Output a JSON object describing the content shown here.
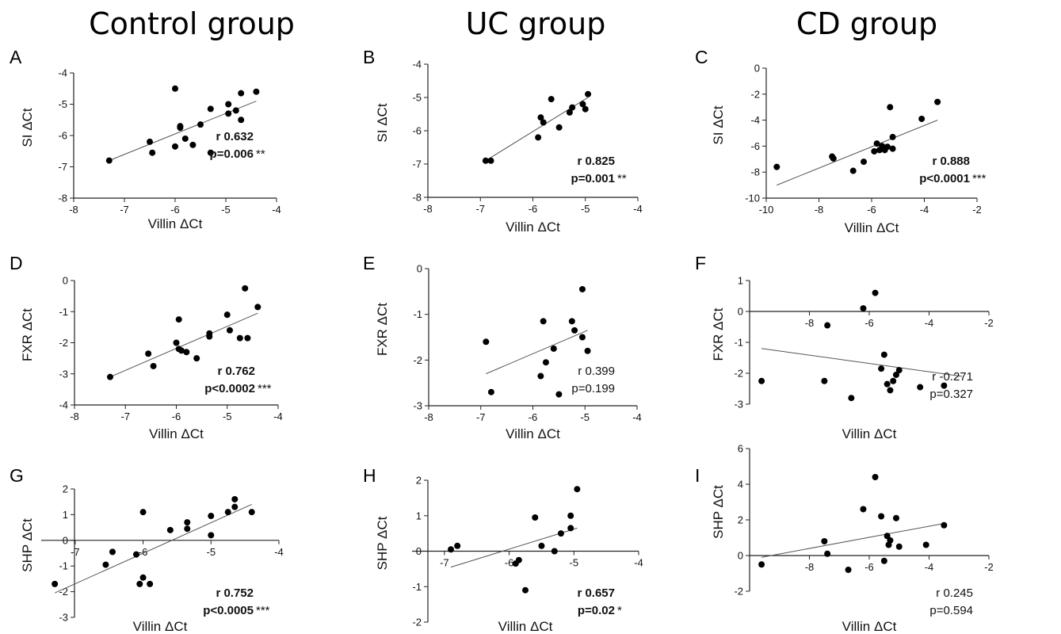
{
  "column_titles": [
    "Control group",
    "UC group",
    "CD group"
  ],
  "chart_data": [
    {
      "id": "A",
      "type": "scatter",
      "xlabel": "Villin ΔCt",
      "ylabel": "SI ΔCt",
      "xlim": [
        -8,
        -4
      ],
      "ylim": [
        -8,
        -4
      ],
      "xticks": [
        -8,
        -7,
        -6,
        -5,
        -4
      ],
      "xtick_labels": [
        "-8",
        "-7",
        "-6",
        "-5",
        "-4"
      ],
      "yticks": [
        -8,
        -7,
        -6,
        -5,
        -4
      ],
      "ytick_labels": [
        "-8",
        "-7",
        "-6",
        "-5",
        "-4"
      ],
      "points": [
        [
          -7.3,
          -6.8
        ],
        [
          -6.5,
          -6.2
        ],
        [
          -6.45,
          -6.55
        ],
        [
          -6.0,
          -4.5
        ],
        [
          -6.0,
          -6.35
        ],
        [
          -5.9,
          -5.7
        ],
        [
          -5.9,
          -5.75
        ],
        [
          -5.8,
          -6.1
        ],
        [
          -5.65,
          -6.3
        ],
        [
          -5.5,
          -5.65
        ],
        [
          -5.3,
          -6.55
        ],
        [
          -5.3,
          -5.15
        ],
        [
          -4.95,
          -5.0
        ],
        [
          -4.95,
          -5.3
        ],
        [
          -4.8,
          -5.2
        ],
        [
          -4.7,
          -4.65
        ],
        [
          -4.7,
          -5.5
        ],
        [
          -4.4,
          -4.6
        ]
      ],
      "fit": [
        [
          -7.3,
          -6.8
        ],
        [
          -4.4,
          -4.9
        ]
      ],
      "stats": {
        "r": "r 0.632",
        "p": "p=0.006",
        "stars": "**",
        "bold": true
      }
    },
    {
      "id": "B",
      "type": "scatter",
      "xlabel": "Villin ΔCt",
      "ylabel": "SI ΔCt",
      "xlim": [
        -8,
        -4
      ],
      "ylim": [
        -8,
        -4
      ],
      "xticks": [
        -8,
        -7,
        -6,
        -5,
        -4
      ],
      "xtick_labels": [
        "-8",
        "-7",
        "-6",
        "-5",
        "-4"
      ],
      "yticks": [
        -8,
        -7,
        -6,
        -5,
        -4
      ],
      "ytick_labels": [
        "-8",
        "-7",
        "-6",
        "-5",
        "-4"
      ],
      "points": [
        [
          -6.9,
          -6.9
        ],
        [
          -6.8,
          -6.9
        ],
        [
          -5.9,
          -6.2
        ],
        [
          -5.85,
          -5.6
        ],
        [
          -5.8,
          -5.75
        ],
        [
          -5.65,
          -5.05
        ],
        [
          -5.5,
          -5.9
        ],
        [
          -5.3,
          -5.45
        ],
        [
          -5.25,
          -5.3
        ],
        [
          -5.05,
          -5.2
        ],
        [
          -5.0,
          -5.35
        ],
        [
          -4.95,
          -4.9
        ]
      ],
      "fit": [
        [
          -6.9,
          -6.9
        ],
        [
          -4.95,
          -5.0
        ]
      ],
      "stats": {
        "r": "r 0.825",
        "p": "p=0.001",
        "stars": "**",
        "bold": true
      }
    },
    {
      "id": "C",
      "type": "scatter",
      "xlabel": "Villin ΔCt",
      "ylabel": "SI ΔCt",
      "xlim": [
        -10,
        -2
      ],
      "ylim": [
        -10,
        0
      ],
      "xticks": [
        -10,
        -8,
        -6,
        -4,
        -2
      ],
      "xtick_labels": [
        "-10",
        "-8",
        "-6",
        "-4",
        "-2"
      ],
      "yticks": [
        -10,
        -8,
        -6,
        -4,
        -2,
        0
      ],
      "ytick_labels": [
        "-10",
        "-8",
        "-6",
        "-4",
        "-2",
        "0"
      ],
      "points": [
        [
          -9.6,
          -7.6
        ],
        [
          -7.5,
          -6.8
        ],
        [
          -7.45,
          -6.95
        ],
        [
          -6.7,
          -7.9
        ],
        [
          -6.3,
          -7.2
        ],
        [
          -5.9,
          -6.4
        ],
        [
          -5.8,
          -5.8
        ],
        [
          -5.7,
          -6.3
        ],
        [
          -5.6,
          -6.0
        ],
        [
          -5.5,
          -6.3
        ],
        [
          -5.4,
          -6.05
        ],
        [
          -5.3,
          -3.0
        ],
        [
          -5.2,
          -5.3
        ],
        [
          -5.2,
          -6.2
        ],
        [
          -4.1,
          -3.9
        ],
        [
          -3.5,
          -2.6
        ]
      ],
      "fit": [
        [
          -9.6,
          -9.0
        ],
        [
          -3.5,
          -4.0
        ]
      ],
      "stats": {
        "r": "r 0.888",
        "p": "p<0.0001",
        "stars": "***",
        "bold": true
      }
    },
    {
      "id": "D",
      "type": "scatter",
      "xlabel": "Villin ΔCt",
      "ylabel": "FXR ΔCt",
      "xlim": [
        -8,
        -4
      ],
      "ylim": [
        -4,
        0
      ],
      "xticks": [
        -8,
        -7,
        -6,
        -5,
        -4
      ],
      "xtick_labels": [
        "-8",
        "-7",
        "-6",
        "-5",
        "-4"
      ],
      "yticks": [
        -4,
        -3,
        -2,
        -1,
        0
      ],
      "ytick_labels": [
        "-4",
        "-3",
        "-2",
        "-1",
        "0"
      ],
      "points": [
        [
          -7.3,
          -3.1
        ],
        [
          -6.55,
          -2.35
        ],
        [
          -6.45,
          -2.75
        ],
        [
          -6.0,
          -2.0
        ],
        [
          -5.95,
          -2.2
        ],
        [
          -5.95,
          -1.25
        ],
        [
          -5.9,
          -2.25
        ],
        [
          -5.8,
          -2.3
        ],
        [
          -5.6,
          -2.5
        ],
        [
          -5.35,
          -1.7
        ],
        [
          -5.35,
          -1.8
        ],
        [
          -5.0,
          -1.1
        ],
        [
          -4.95,
          -1.6
        ],
        [
          -4.75,
          -1.85
        ],
        [
          -4.65,
          -0.25
        ],
        [
          -4.6,
          -1.85
        ],
        [
          -4.4,
          -0.85
        ]
      ],
      "fit": [
        [
          -7.3,
          -3.1
        ],
        [
          -4.4,
          -1.05
        ]
      ],
      "stats": {
        "r": "r 0.762",
        "p": "p<0.0002",
        "stars": "***",
        "bold": true
      }
    },
    {
      "id": "E",
      "type": "scatter",
      "xlabel": "Villin ΔCt",
      "ylabel": "FXR ΔCt",
      "xlim": [
        -8,
        -4
      ],
      "ylim": [
        -3,
        0
      ],
      "xticks": [
        -8,
        -7,
        -6,
        -5,
        -4
      ],
      "xtick_labels": [
        "-8",
        "-7",
        "-6",
        "-5",
        "-4"
      ],
      "yticks": [
        -3,
        -2,
        -1,
        0
      ],
      "ytick_labels": [
        "-3",
        "-2",
        "-1",
        "0"
      ],
      "points": [
        [
          -6.9,
          -1.6
        ],
        [
          -6.8,
          -2.7
        ],
        [
          -5.85,
          -2.35
        ],
        [
          -5.8,
          -1.15
        ],
        [
          -5.75,
          -2.05
        ],
        [
          -5.6,
          -1.75
        ],
        [
          -5.5,
          -2.75
        ],
        [
          -5.25,
          -1.15
        ],
        [
          -5.2,
          -1.35
        ],
        [
          -5.05,
          -1.5
        ],
        [
          -5.05,
          -0.45
        ],
        [
          -4.95,
          -1.8
        ]
      ],
      "fit": [
        [
          -6.9,
          -2.3
        ],
        [
          -4.95,
          -1.35
        ]
      ],
      "stats": {
        "r": "r 0.399",
        "p": "p=0.199",
        "stars": "",
        "bold": false
      }
    },
    {
      "id": "F",
      "type": "scatter",
      "xlabel": "Villin ΔCt",
      "ylabel": "FXR ΔCt",
      "xlim": [
        -10,
        -2
      ],
      "ylim": [
        -3,
        1
      ],
      "xticks": [
        -8,
        -6,
        -4,
        -2
      ],
      "xtick_labels": [
        "-8",
        "-6",
        "-4",
        "-2"
      ],
      "yticks": [
        -3,
        -2,
        -1,
        0,
        1
      ],
      "ytick_labels": [
        "-3",
        "-2",
        "-1",
        "0",
        "1"
      ],
      "points": [
        [
          -9.6,
          -2.25
        ],
        [
          -7.5,
          -2.25
        ],
        [
          -7.4,
          -0.45
        ],
        [
          -6.6,
          -2.8
        ],
        [
          -6.2,
          0.1
        ],
        [
          -5.8,
          0.6
        ],
        [
          -5.6,
          -1.85
        ],
        [
          -5.5,
          -1.4
        ],
        [
          -5.4,
          -2.35
        ],
        [
          -5.3,
          -2.55
        ],
        [
          -5.2,
          -2.25
        ],
        [
          -5.1,
          -2.05
        ],
        [
          -5.0,
          -1.9
        ],
        [
          -4.3,
          -2.45
        ],
        [
          -3.5,
          -2.4
        ]
      ],
      "fit": [
        [
          -9.6,
          -1.2
        ],
        [
          -2.9,
          -2.1
        ]
      ],
      "stats": {
        "r": "r -0.271",
        "p": "p=0.327",
        "stars": "",
        "bold": false
      }
    },
    {
      "id": "G",
      "type": "scatter",
      "xlabel": "Villin ΔCt",
      "ylabel": "SHP ΔCt",
      "xlim": [
        -7.5,
        -4
      ],
      "ylim": [
        -3,
        2
      ],
      "xticks": [
        -7,
        -6,
        -5,
        -4
      ],
      "xtick_labels": [
        "-7",
        "-6",
        "-5",
        "-4"
      ],
      "yticks": [
        -3,
        -2,
        -1,
        0,
        1,
        2
      ],
      "ytick_labels": [
        "-3",
        "-2",
        "-1",
        "0",
        "1",
        "2"
      ],
      "points": [
        [
          -7.3,
          -1.7
        ],
        [
          -6.55,
          -0.95
        ],
        [
          -6.45,
          -0.45
        ],
        [
          -6.1,
          -0.55
        ],
        [
          -6.05,
          -1.7
        ],
        [
          -6.0,
          1.1
        ],
        [
          -6.0,
          -1.45
        ],
        [
          -5.9,
          -1.7
        ],
        [
          -5.6,
          0.4
        ],
        [
          -5.35,
          0.45
        ],
        [
          -5.35,
          0.7
        ],
        [
          -5.0,
          0.2
        ],
        [
          -5.0,
          0.95
        ],
        [
          -4.75,
          1.1
        ],
        [
          -4.65,
          1.6
        ],
        [
          -4.65,
          1.3
        ],
        [
          -4.4,
          1.1
        ]
      ],
      "fit": [
        [
          -7.3,
          -2.05
        ],
        [
          -4.4,
          1.4
        ]
      ],
      "stats": {
        "r": "r 0.752",
        "p": "p<0.0005",
        "stars": "***",
        "bold": true
      }
    },
    {
      "id": "H",
      "type": "scatter",
      "xlabel": "Villin ΔCt",
      "ylabel": "SHP ΔCt",
      "xlim": [
        -7.5,
        -4
      ],
      "ylim": [
        -2,
        2
      ],
      "xticks": [
        -7,
        -6,
        -5,
        -4
      ],
      "xtick_labels": [
        "-7",
        "-6",
        "-5",
        "-4"
      ],
      "yticks": [
        -2,
        -1,
        0,
        1,
        2
      ],
      "ytick_labels": [
        "-2",
        "-1",
        "0",
        "1",
        "2"
      ],
      "points": [
        [
          -6.9,
          0.05
        ],
        [
          -6.8,
          0.15
        ],
        [
          -5.9,
          -0.35
        ],
        [
          -5.85,
          -0.25
        ],
        [
          -5.75,
          -1.1
        ],
        [
          -5.6,
          0.95
        ],
        [
          -5.5,
          0.15
        ],
        [
          -5.3,
          0.0
        ],
        [
          -5.2,
          0.5
        ],
        [
          -5.05,
          1.0
        ],
        [
          -5.05,
          0.65
        ],
        [
          -4.95,
          1.75
        ]
      ],
      "fit": [
        [
          -6.9,
          -0.45
        ],
        [
          -4.95,
          0.65
        ]
      ],
      "stats": {
        "r": "r 0.657",
        "p": "p=0.02",
        "stars": "*",
        "bold": true
      }
    },
    {
      "id": "I",
      "type": "scatter",
      "xlabel": "Villin ΔCt",
      "ylabel": "SHP ΔCt",
      "xlim": [
        -10,
        -2
      ],
      "ylim": [
        -2,
        6
      ],
      "xticks": [
        -8,
        -6,
        -4,
        -2
      ],
      "xtick_labels": [
        "-8",
        "-6",
        "-4",
        "-2"
      ],
      "yticks": [
        -2,
        0,
        2,
        4,
        6
      ],
      "ytick_labels": [
        "-2",
        "0",
        "2",
        "4",
        "6"
      ],
      "points": [
        [
          -9.6,
          -0.5
        ],
        [
          -7.5,
          0.8
        ],
        [
          -7.4,
          0.1
        ],
        [
          -6.7,
          -0.8
        ],
        [
          -6.2,
          2.6
        ],
        [
          -5.8,
          4.4
        ],
        [
          -5.6,
          2.2
        ],
        [
          -5.5,
          -0.3
        ],
        [
          -5.4,
          1.1
        ],
        [
          -5.35,
          0.6
        ],
        [
          -5.3,
          0.85
        ],
        [
          -5.1,
          2.1
        ],
        [
          -5.0,
          0.5
        ],
        [
          -4.1,
          0.6
        ],
        [
          -3.5,
          1.7
        ]
      ],
      "fit": [
        [
          -9.6,
          -0.1
        ],
        [
          -3.5,
          1.8
        ]
      ],
      "stats": {
        "r": "r 0.245",
        "p": "p=0.594",
        "stars": "",
        "bold": false
      }
    }
  ]
}
